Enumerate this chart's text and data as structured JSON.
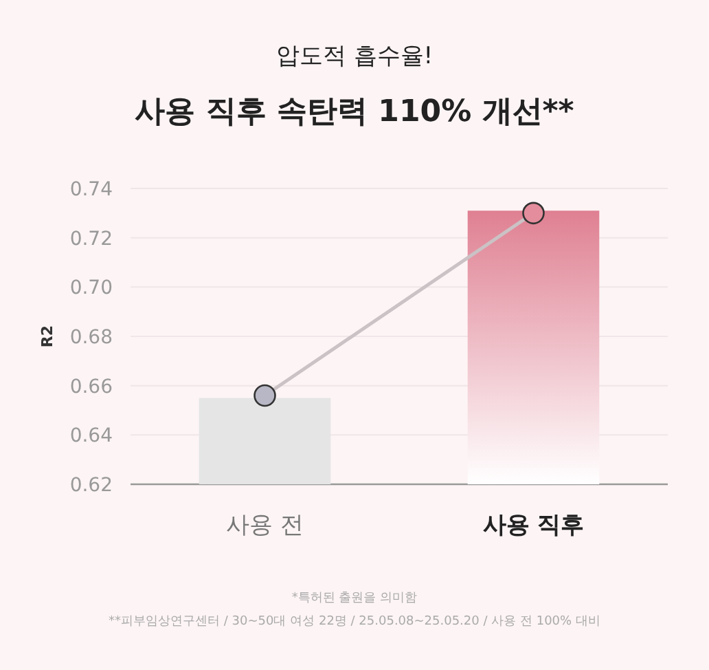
{
  "chart_data": {
    "type": "bar",
    "title": "압도적 흡수율!",
    "subtitle": "사용 직후 속탄력 110% 개선**",
    "ylabel": "R2",
    "categories": [
      "사용 전",
      "사용 직후"
    ],
    "series": [
      {
        "colors": [
          "#e5e5e5",
          "#df8092"
        ],
        "values": [
          0.655,
          0.731
        ]
      },
      {
        "type": "line",
        "color": "#cbc2c5",
        "colors": [
          "#b7b7c5",
          "#e48d9d"
        ],
        "values": [
          0.656,
          0.73
        ]
      }
    ],
    "ylim": [
      0.62,
      0.74
    ],
    "yticks": [
      0.62,
      0.64,
      0.66,
      0.68,
      {
        "value": 0.7,
        "label": "0.70"
      },
      0.72,
      0.74
    ],
    "grid": "y",
    "marker": "circle",
    "annotations": [
      "*특허된 출원을 의미함",
      "**피부임상연구센터 / 30~50대 여성 22명 / 25.05.08~25.05.20 / 사용 전 100% 대비"
    ]
  }
}
